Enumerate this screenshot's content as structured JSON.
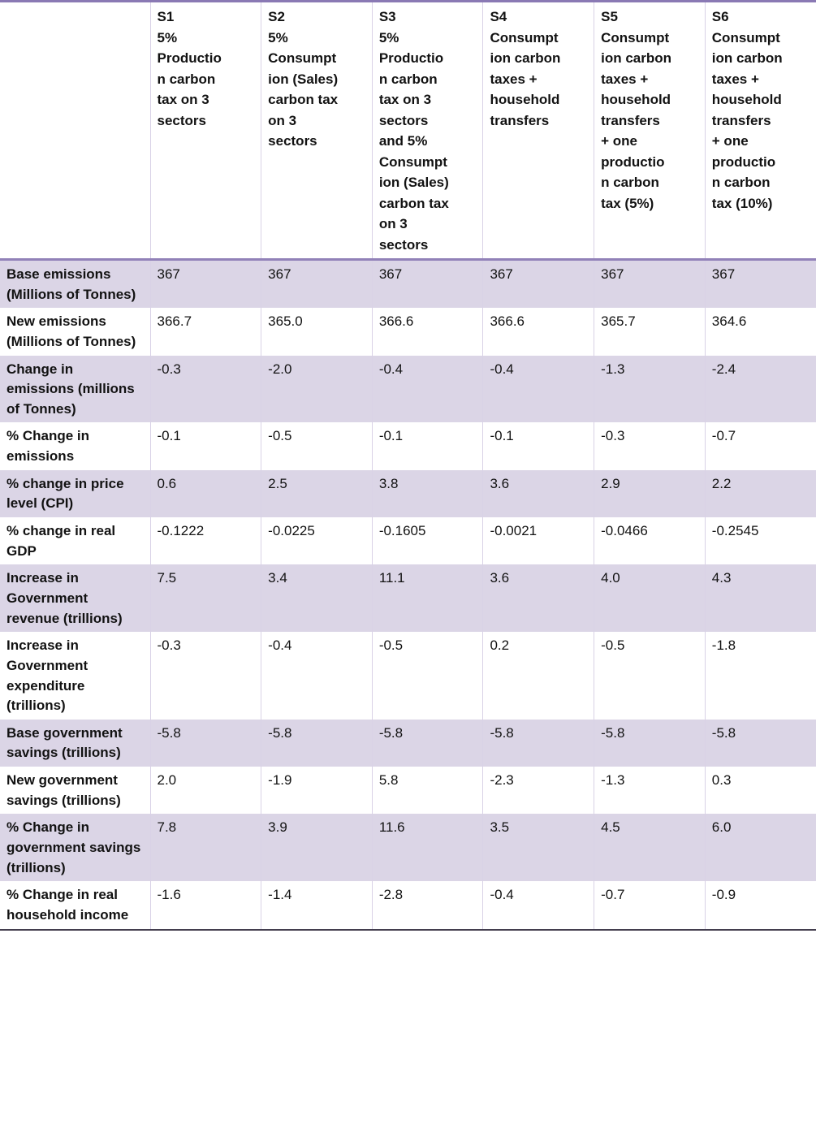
{
  "colors": {
    "top_border": "#8a79b4",
    "header_border": "#9181b8",
    "bottom_border": "#433e4e",
    "stripe": "#dbd5e6",
    "grid": "#d9d2e6",
    "text": "#121212"
  },
  "table": {
    "corner_label": "",
    "columns": [
      {
        "id": "S1",
        "label": "S1\n5%\nProductio\nn carbon\ntax on 3\nsectors"
      },
      {
        "id": "S2",
        "label": "S2\n5%\nConsumpt\nion (Sales)\ncarbon tax\non 3\nsectors"
      },
      {
        "id": "S3",
        "label": "S3\n5%\nProductio\nn carbon\ntax on 3\nsectors\nand 5%\nConsumpt\nion (Sales)\ncarbon tax\non 3\nsectors"
      },
      {
        "id": "S4",
        "label": "S4\nConsumpt\nion carbon\ntaxes +\nhousehold\ntransfers"
      },
      {
        "id": "S5",
        "label": "S5\nConsumpt\nion carbon\ntaxes +\nhousehold\ntransfers\n+ one\nproductio\nn carbon\ntax (5%)"
      },
      {
        "id": "S6",
        "label": "S6\nConsumpt\nion carbon\ntaxes +\nhousehold\ntransfers\n+ one\nproductio\nn carbon\ntax (10%)"
      }
    ],
    "rows": [
      {
        "label": "Base emissions (Millions of Tonnes)",
        "values": [
          "367",
          "367",
          "367",
          "367",
          "367",
          "367"
        ]
      },
      {
        "label": "New emissions (Millions of Tonnes)",
        "values": [
          "366.7",
          "365.0",
          "366.6",
          "366.6",
          "365.7",
          "364.6"
        ]
      },
      {
        "label": "Change in emissions (millions of Tonnes)",
        "values": [
          "-0.3",
          "-2.0",
          "-0.4",
          "-0.4",
          "-1.3",
          "-2.4"
        ]
      },
      {
        "label": "% Change in emissions",
        "values": [
          "-0.1",
          "-0.5",
          "-0.1",
          "-0.1",
          "-0.3",
          "-0.7"
        ]
      },
      {
        "label": "% change in price level (CPI)",
        "values": [
          "0.6",
          "2.5",
          "3.8",
          "3.6",
          "2.9",
          "2.2"
        ]
      },
      {
        "label": "% change in real GDP",
        "values": [
          "-0.1222",
          "-0.0225",
          "-0.1605",
          "-0.0021",
          "-0.0466",
          "-0.2545"
        ]
      },
      {
        "label": "Increase in Government revenue (trillions)",
        "values": [
          "7.5",
          "3.4",
          "11.1",
          "3.6",
          "4.0",
          "4.3"
        ]
      },
      {
        "label": "Increase in Government expenditure (trillions)",
        "values": [
          "-0.3",
          "-0.4",
          "-0.5",
          "0.2",
          "-0.5",
          "-1.8"
        ]
      },
      {
        "label": "Base government savings (trillions)",
        "values": [
          "-5.8",
          "-5.8",
          "-5.8",
          "-5.8",
          "-5.8",
          "-5.8"
        ]
      },
      {
        "label": "New government savings (trillions)",
        "values": [
          "2.0",
          "-1.9",
          "5.8",
          "-2.3",
          "-1.3",
          "0.3"
        ]
      },
      {
        "label": "% Change in government savings (trillions)",
        "values": [
          "7.8",
          "3.9",
          "11.6",
          "3.5",
          "4.5",
          "6.0"
        ]
      },
      {
        "label": "% Change in real household income",
        "values": [
          "-1.6",
          "-1.4",
          "-2.8",
          "-0.4",
          "-0.7",
          "-0.9"
        ]
      }
    ]
  }
}
